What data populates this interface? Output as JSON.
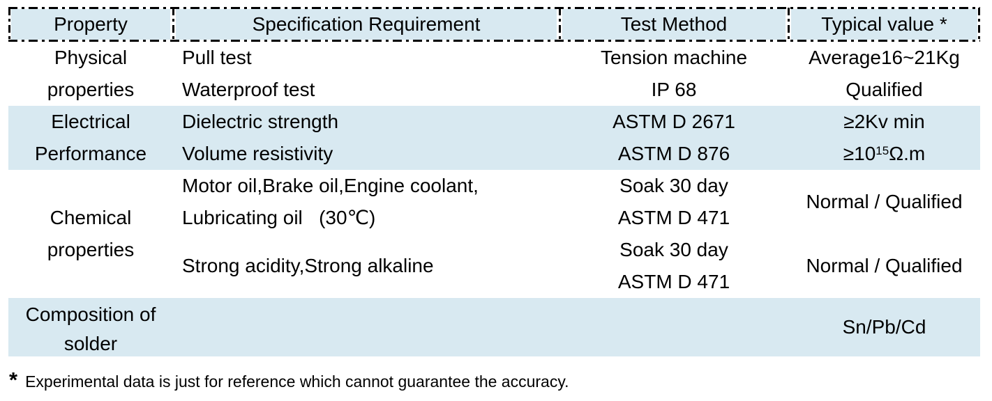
{
  "table": {
    "headers": {
      "property": "Property",
      "specification": "Specification Requirement",
      "test_method": "Test Method",
      "typical_value": "Typical value *"
    },
    "sections": [
      {
        "name": "Physical properties",
        "property_line1": "Physical",
        "property_line2": "properties",
        "rows": [
          {
            "spec": "Pull test",
            "test": "Tension machine",
            "typical": "Average16~21Kg"
          },
          {
            "spec": "Waterproof test",
            "test": "IP 68",
            "typical": "Qualified"
          }
        ]
      },
      {
        "name": "Electrical Performance",
        "property_line1": "Electrical",
        "property_line2": "Performance",
        "rows": [
          {
            "spec": "Dielectric strength",
            "test": "ASTM D 2671",
            "typical": "≥2Kv min"
          },
          {
            "spec": "Volume resistivity",
            "test": "ASTM D 876",
            "typical_base": "≥10",
            "typical_sup": "15",
            "typical_unit": "Ω.m"
          }
        ]
      },
      {
        "name": "Chemical properties",
        "property_line1": "Chemical",
        "property_line2": "properties",
        "rows": [
          {
            "spec_line1": "Motor oil,Brake oil,Engine coolant,",
            "spec_line2": "Lubricating oil   (30℃)",
            "test_line1": "Soak 30 day",
            "test_line2": "ASTM D 471",
            "typical": "Normal / Qualified"
          },
          {
            "spec_line1": "Strong acidity,Strong alkaline",
            "test_line1": "Soak 30 day",
            "test_line2": "ASTM D 471",
            "typical": "Normal / Qualified"
          }
        ]
      },
      {
        "name": "Composition of solder",
        "property_line1": "Composition of",
        "property_line2": "solder",
        "rows": [
          {
            "typical": "Sn/Pb/Cd"
          }
        ]
      }
    ]
  },
  "footnote": {
    "marker": "*",
    "text": "Experimental data is just for reference which cannot guarantee the accuracy."
  },
  "colors": {
    "band_blue": "#d8e9f1",
    "border_black": "#000000",
    "text_black": "#000000"
  }
}
